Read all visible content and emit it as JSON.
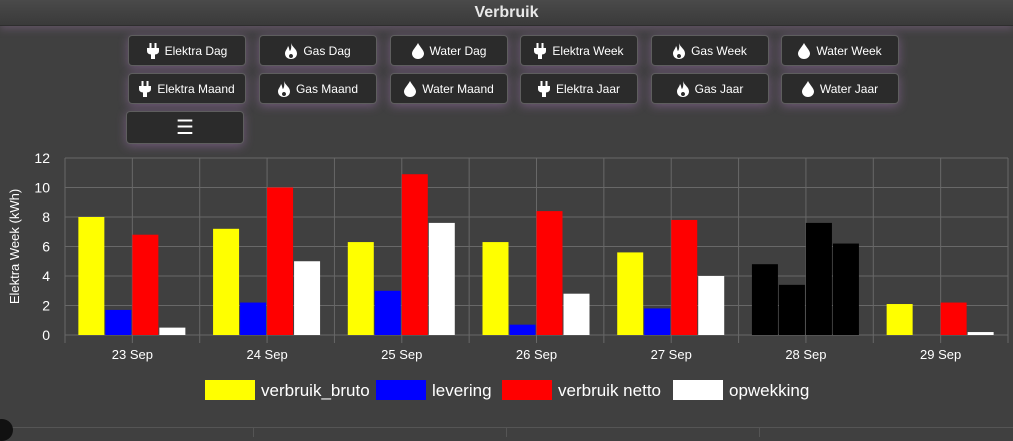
{
  "header": {
    "title": "Verbruik"
  },
  "buttons_row1": [
    {
      "label": "Elektra Dag",
      "icon": "plug-icon"
    },
    {
      "label": "Gas Dag",
      "icon": "flame-icon"
    },
    {
      "label": "Water Dag",
      "icon": "water-drop-icon"
    },
    {
      "label": "Elektra Week",
      "icon": "plug-icon"
    },
    {
      "label": "Gas Week",
      "icon": "flame-icon"
    },
    {
      "label": "Water Week",
      "icon": "water-drop-icon"
    }
  ],
  "buttons_row2": [
    {
      "label": "Elektra Maand",
      "icon": "plug-icon"
    },
    {
      "label": "Gas Maand",
      "icon": "flame-icon"
    },
    {
      "label": "Water Maand",
      "icon": "water-drop-icon"
    },
    {
      "label": "Elektra Jaar",
      "icon": "plug-icon"
    },
    {
      "label": "Gas Jaar",
      "icon": "flame-icon"
    },
    {
      "label": "Water Jaar",
      "icon": "water-drop-icon"
    }
  ],
  "menu_button": {
    "icon": "menu-icon",
    "glyph": "☰"
  },
  "chart_data": {
    "type": "bar",
    "ylabel": "Elektra Week (kWh)",
    "xlabel": "",
    "ylim": [
      0,
      12
    ],
    "yticks": [
      0,
      2,
      4,
      6,
      8,
      10,
      12
    ],
    "grid": true,
    "legend_position": "bottom",
    "categories": [
      "23 Sep",
      "24 Sep",
      "25 Sep",
      "26 Sep",
      "27 Sep",
      "28 Sep",
      "29 Sep"
    ],
    "series": [
      {
        "name": "verbruik_bruto",
        "color": "#ffff00",
        "values": [
          8.0,
          7.2,
          6.3,
          6.3,
          5.6,
          4.8,
          2.1
        ]
      },
      {
        "name": "levering",
        "color": "#0000ff",
        "values": [
          1.7,
          2.2,
          3.0,
          0.7,
          1.8,
          3.4,
          0.0
        ]
      },
      {
        "name": "verbruik netto",
        "color": "#ff0000",
        "values": [
          6.8,
          10.0,
          10.9,
          8.4,
          7.8,
          7.6,
          2.2
        ]
      },
      {
        "name": "opwekking",
        "color": "#ffffff",
        "values": [
          0.5,
          5.0,
          7.6,
          2.8,
          4.0,
          6.2,
          0.2
        ]
      }
    ],
    "highlighted_category": {
      "category": "28 Sep",
      "color": "#000000"
    }
  }
}
